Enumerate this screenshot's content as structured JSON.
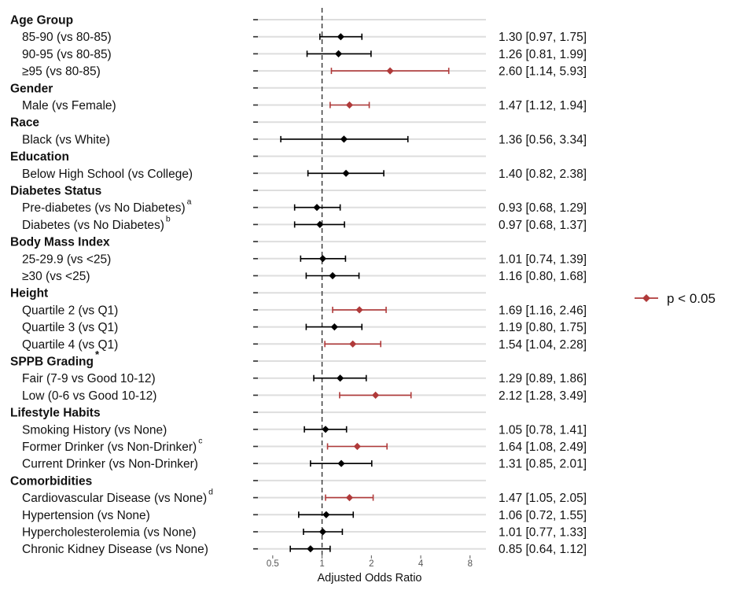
{
  "chart_data": {
    "type": "forest",
    "xlabel": "Adjusted Odds Ratio",
    "x_scale": "log2",
    "xlim": [
      0.38,
      10
    ],
    "xticks": [
      0.5,
      1,
      2,
      4,
      8
    ],
    "xtick_labels": [
      "0.5",
      "1",
      "2",
      "4",
      "8"
    ],
    "reference_line": 1,
    "colors": {
      "significant": "#b03a3a",
      "nonsignificant": "#000000",
      "grid": "#dedede"
    },
    "legend": {
      "label": "p < 0.05",
      "position": "right"
    },
    "rows": [
      {
        "kind": "header",
        "label": "Age Group"
      },
      {
        "kind": "item",
        "label": "85-90 (vs 80-85)",
        "or": 1.3,
        "lo": 0.97,
        "hi": 1.75,
        "sig": false,
        "ci_text": "1.30 [0.97, 1.75]"
      },
      {
        "kind": "item",
        "label": "90-95 (vs 80-85)",
        "or": 1.26,
        "lo": 0.81,
        "hi": 1.99,
        "sig": false,
        "ci_text": "1.26 [0.81, 1.99]"
      },
      {
        "kind": "item",
        "label": "≥95 (vs 80-85)",
        "or": 2.6,
        "lo": 1.14,
        "hi": 5.93,
        "sig": true,
        "ci_text": "2.60 [1.14, 5.93]"
      },
      {
        "kind": "header",
        "label": "Gender"
      },
      {
        "kind": "item",
        "label": "Male (vs Female)",
        "or": 1.47,
        "lo": 1.12,
        "hi": 1.94,
        "sig": true,
        "ci_text": "1.47 [1.12, 1.94]"
      },
      {
        "kind": "header",
        "label": "Race"
      },
      {
        "kind": "item",
        "label": "Black (vs White)",
        "or": 1.36,
        "lo": 0.56,
        "hi": 3.34,
        "sig": false,
        "ci_text": "1.36 [0.56, 3.34]"
      },
      {
        "kind": "header",
        "label": "Education"
      },
      {
        "kind": "item",
        "label": "Below High School (vs College)",
        "or": 1.4,
        "lo": 0.82,
        "hi": 2.38,
        "sig": false,
        "ci_text": "1.40 [0.82, 2.38]"
      },
      {
        "kind": "header",
        "label": "Diabetes Status"
      },
      {
        "kind": "item",
        "label": "Pre-diabetes (vs No Diabetes)",
        "sup": "a",
        "or": 0.93,
        "lo": 0.68,
        "hi": 1.29,
        "sig": false,
        "ci_text": "0.93 [0.68, 1.29]"
      },
      {
        "kind": "item",
        "label": "Diabetes (vs No Diabetes)",
        "sup": "b",
        "or": 0.97,
        "lo": 0.68,
        "hi": 1.37,
        "sig": false,
        "ci_text": "0.97 [0.68, 1.37]"
      },
      {
        "kind": "header",
        "label": "Body Mass Index"
      },
      {
        "kind": "item",
        "label": "25-29.9 (vs <25)",
        "or": 1.01,
        "lo": 0.74,
        "hi": 1.39,
        "sig": false,
        "ci_text": "1.01 [0.74, 1.39]"
      },
      {
        "kind": "item",
        "label": "≥30 (vs <25)",
        "or": 1.16,
        "lo": 0.8,
        "hi": 1.68,
        "sig": false,
        "ci_text": "1.16 [0.80, 1.68]"
      },
      {
        "kind": "header",
        "label": "Height"
      },
      {
        "kind": "item",
        "label": "Quartile 2 (vs Q1)",
        "or": 1.69,
        "lo": 1.16,
        "hi": 2.46,
        "sig": true,
        "ci_text": "1.69 [1.16, 2.46]"
      },
      {
        "kind": "item",
        "label": "Quartile 3 (vs Q1)",
        "or": 1.19,
        "lo": 0.8,
        "hi": 1.75,
        "sig": false,
        "ci_text": "1.19 [0.80, 1.75]"
      },
      {
        "kind": "item",
        "label": "Quartile 4 (vs Q1)",
        "or": 1.54,
        "lo": 1.04,
        "hi": 2.28,
        "sig": true,
        "ci_text": "1.54 [1.04, 2.28]"
      },
      {
        "kind": "header",
        "label": "SPPB Grading",
        "sup": "*"
      },
      {
        "kind": "item",
        "label": "Fair (7-9 vs Good 10-12)",
        "or": 1.29,
        "lo": 0.89,
        "hi": 1.86,
        "sig": false,
        "ci_text": "1.29 [0.89, 1.86]"
      },
      {
        "kind": "item",
        "label": "Low (0-6 vs Good 10-12)",
        "or": 2.12,
        "lo": 1.28,
        "hi": 3.49,
        "sig": true,
        "ci_text": "2.12 [1.28, 3.49]"
      },
      {
        "kind": "header",
        "label": "Lifestyle Habits"
      },
      {
        "kind": "item",
        "label": "Smoking History (vs None)",
        "or": 1.05,
        "lo": 0.78,
        "hi": 1.41,
        "sig": false,
        "ci_text": "1.05 [0.78, 1.41]"
      },
      {
        "kind": "item",
        "label": "Former Drinker (vs Non-Drinker)",
        "sup": "c",
        "or": 1.64,
        "lo": 1.08,
        "hi": 2.49,
        "sig": true,
        "ci_text": "1.64 [1.08, 2.49]"
      },
      {
        "kind": "item",
        "label": "Current Drinker (vs Non-Drinker)",
        "or": 1.31,
        "lo": 0.85,
        "hi": 2.01,
        "sig": false,
        "ci_text": "1.31 [0.85, 2.01]"
      },
      {
        "kind": "header",
        "label": "Comorbidities"
      },
      {
        "kind": "item",
        "label": "Cardiovascular Disease (vs None)",
        "sup": "d",
        "or": 1.47,
        "lo": 1.05,
        "hi": 2.05,
        "sig": true,
        "ci_text": "1.47 [1.05, 2.05]"
      },
      {
        "kind": "item",
        "label": "Hypertension (vs None)",
        "or": 1.06,
        "lo": 0.72,
        "hi": 1.55,
        "sig": false,
        "ci_text": "1.06 [0.72, 1.55]"
      },
      {
        "kind": "item",
        "label": "Hypercholesterolemia (vs None)",
        "or": 1.01,
        "lo": 0.77,
        "hi": 1.33,
        "sig": false,
        "ci_text": "1.01 [0.77, 1.33]"
      },
      {
        "kind": "item",
        "label": "Chronic Kidney Disease (vs None)",
        "or": 0.85,
        "lo": 0.64,
        "hi": 1.12,
        "sig": false,
        "ci_text": "0.85 [0.64, 1.12]"
      }
    ]
  }
}
